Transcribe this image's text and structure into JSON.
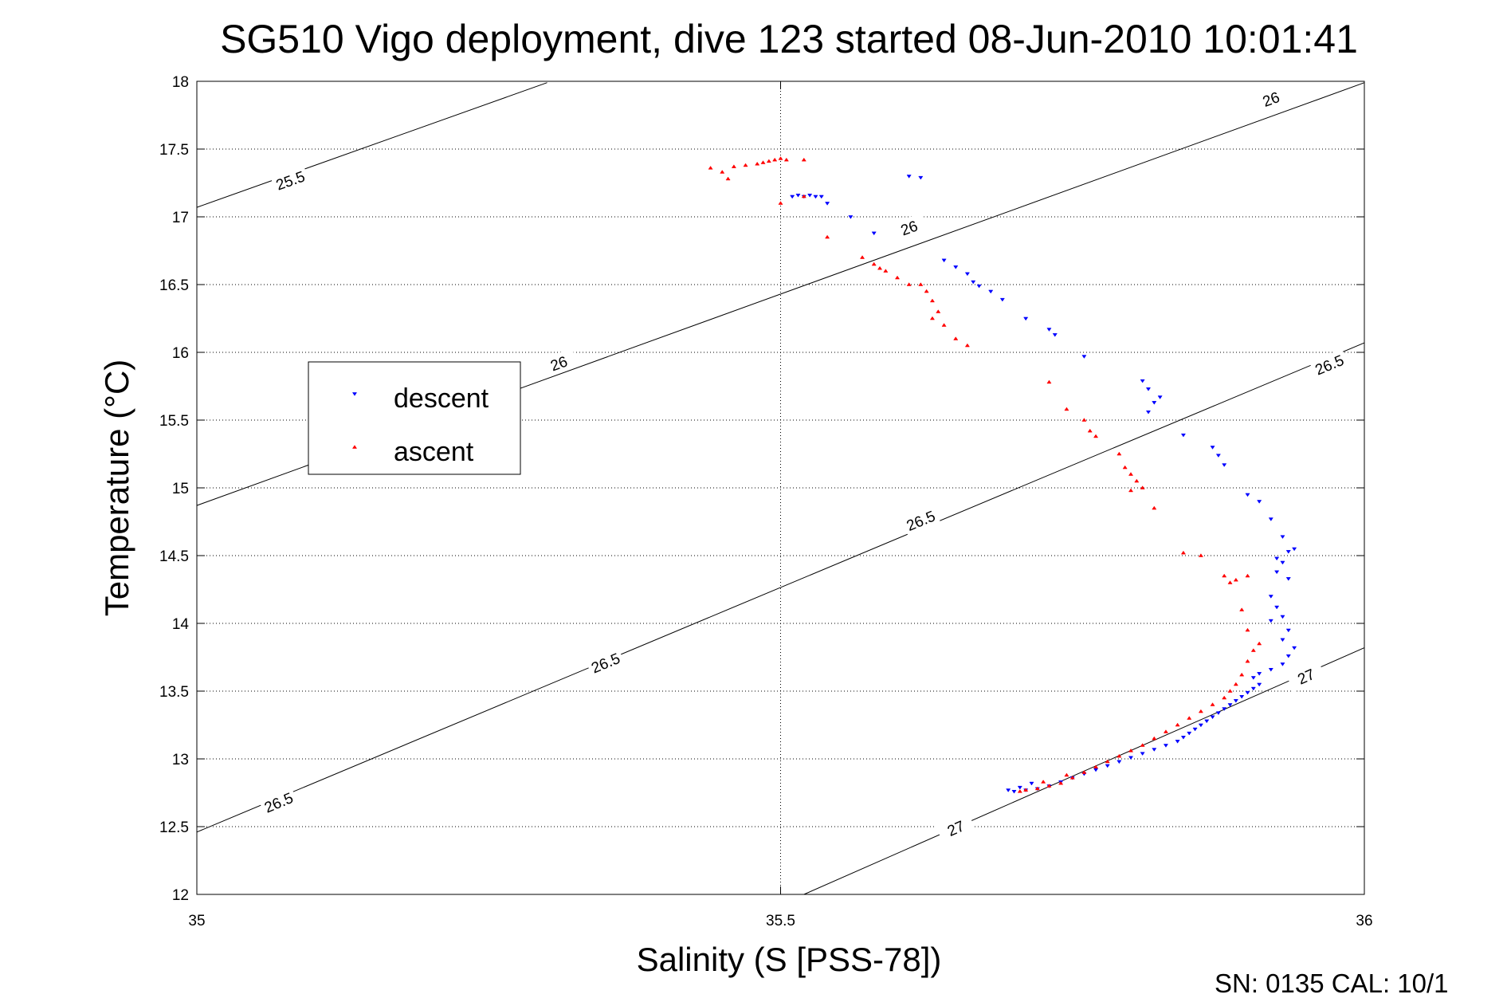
{
  "chart_data": {
    "type": "scatter",
    "title": "SG510 Vigo deployment, dive 123 started 08-Jun-2010 10:01:41",
    "xlabel": "Salinity (S [PSS-78])",
    "ylabel": "Temperature (°C)",
    "xlim": [
      35,
      36
    ],
    "ylim": [
      12,
      18
    ],
    "x_ticks": [
      "35",
      "35.5",
      "36"
    ],
    "y_ticks": [
      "12",
      "12.5",
      "13",
      "13.5",
      "14",
      "14.5",
      "15",
      "15.5",
      "16",
      "16.5",
      "17",
      "17.5",
      "18"
    ],
    "grid": true,
    "legend_position": "center-left",
    "footer": "SN: 0135  CAL: 10/1",
    "colors": {
      "descent": "#0000ff",
      "ascent": "#ff0000",
      "contour": "#000000"
    },
    "density_contours": [
      {
        "level": "25.5",
        "points": [
          [
            35.0,
            17.07
          ],
          [
            35.3,
            17.99
          ]
        ],
        "labels": [
          {
            "text": "25.5",
            "x": 35.08,
            "y": 17.27
          }
        ]
      },
      {
        "level": "26",
        "points": [
          [
            35.0,
            14.87
          ],
          [
            36.0,
            17.99
          ]
        ],
        "labels": [
          {
            "text": "26",
            "x": 35.31,
            "y": 15.92
          },
          {
            "text": "26",
            "x": 35.61,
            "y": 16.92
          },
          {
            "text": "26",
            "x": 35.92,
            "y": 17.87
          }
        ]
      },
      {
        "level": "26.5",
        "points": [
          [
            35.0,
            12.46
          ],
          [
            36.0,
            16.07
          ]
        ],
        "labels": [
          {
            "text": "26.5",
            "x": 35.07,
            "y": 12.68
          },
          {
            "text": "26.5",
            "x": 35.35,
            "y": 13.71
          },
          {
            "text": "26.5",
            "x": 35.62,
            "y": 14.76
          },
          {
            "text": "26.5",
            "x": 35.97,
            "y": 15.91
          }
        ]
      },
      {
        "level": "27",
        "points": [
          [
            35.52,
            12.0
          ],
          [
            36.0,
            13.82
          ]
        ],
        "labels": [
          {
            "text": "27",
            "x": 35.65,
            "y": 12.49
          },
          {
            "text": "27",
            "x": 35.95,
            "y": 13.61
          }
        ]
      }
    ],
    "series": [
      {
        "name": "descent",
        "marker": "triangle-down",
        "points": [
          [
            35.51,
            17.15
          ],
          [
            35.515,
            17.16
          ],
          [
            35.52,
            17.15
          ],
          [
            35.525,
            17.16
          ],
          [
            35.53,
            17.15
          ],
          [
            35.535,
            17.15
          ],
          [
            35.54,
            17.1
          ],
          [
            35.56,
            17.0
          ],
          [
            35.58,
            16.88
          ],
          [
            35.61,
            17.3
          ],
          [
            35.62,
            17.29
          ],
          [
            35.64,
            16.68
          ],
          [
            35.65,
            16.63
          ],
          [
            35.66,
            16.58
          ],
          [
            35.665,
            16.52
          ],
          [
            35.67,
            16.49
          ],
          [
            35.68,
            16.45
          ],
          [
            35.69,
            16.39
          ],
          [
            35.71,
            16.25
          ],
          [
            35.73,
            16.17
          ],
          [
            35.735,
            16.13
          ],
          [
            35.76,
            15.97
          ],
          [
            35.81,
            15.79
          ],
          [
            35.815,
            15.73
          ],
          [
            35.82,
            15.63
          ],
          [
            35.825,
            15.67
          ],
          [
            35.815,
            15.56
          ],
          [
            35.845,
            15.39
          ],
          [
            35.87,
            15.3
          ],
          [
            35.875,
            15.24
          ],
          [
            35.88,
            15.17
          ],
          [
            35.9,
            14.95
          ],
          [
            35.91,
            14.9
          ],
          [
            35.92,
            14.77
          ],
          [
            35.93,
            14.64
          ],
          [
            35.935,
            14.53
          ],
          [
            35.94,
            14.55
          ],
          [
            35.925,
            14.48
          ],
          [
            35.93,
            14.45
          ],
          [
            35.925,
            14.38
          ],
          [
            35.935,
            14.33
          ],
          [
            35.92,
            14.2
          ],
          [
            35.925,
            14.12
          ],
          [
            35.93,
            14.05
          ],
          [
            35.92,
            14.02
          ],
          [
            35.935,
            13.95
          ],
          [
            35.93,
            13.88
          ],
          [
            35.94,
            13.82
          ],
          [
            35.935,
            13.76
          ],
          [
            35.93,
            13.7
          ],
          [
            35.92,
            13.66
          ],
          [
            35.91,
            13.63
          ],
          [
            35.905,
            13.6
          ],
          [
            35.91,
            13.55
          ],
          [
            35.905,
            13.52
          ],
          [
            35.9,
            13.49
          ],
          [
            35.895,
            13.46
          ],
          [
            35.89,
            13.43
          ],
          [
            35.885,
            13.4
          ],
          [
            35.88,
            13.37
          ],
          [
            35.875,
            13.34
          ],
          [
            35.87,
            13.31
          ],
          [
            35.865,
            13.28
          ],
          [
            35.86,
            13.25
          ],
          [
            35.855,
            13.22
          ],
          [
            35.85,
            13.19
          ],
          [
            35.845,
            13.16
          ],
          [
            35.84,
            13.13
          ],
          [
            35.83,
            13.1
          ],
          [
            35.82,
            13.07
          ],
          [
            35.81,
            13.04
          ],
          [
            35.8,
            13.01
          ],
          [
            35.79,
            12.98
          ],
          [
            35.78,
            12.95
          ],
          [
            35.77,
            12.92
          ],
          [
            35.76,
            12.89
          ],
          [
            35.75,
            12.86
          ],
          [
            35.74,
            12.83
          ],
          [
            35.73,
            12.8
          ],
          [
            35.72,
            12.78
          ],
          [
            35.71,
            12.77
          ],
          [
            35.7,
            12.76
          ],
          [
            35.695,
            12.77
          ],
          [
            35.705,
            12.79
          ],
          [
            35.715,
            12.82
          ]
        ]
      },
      {
        "name": "ascent",
        "marker": "triangle-up",
        "points": [
          [
            35.44,
            17.36
          ],
          [
            35.45,
            17.33
          ],
          [
            35.455,
            17.28
          ],
          [
            35.46,
            17.37
          ],
          [
            35.47,
            17.38
          ],
          [
            35.48,
            17.39
          ],
          [
            35.485,
            17.4
          ],
          [
            35.49,
            17.41
          ],
          [
            35.495,
            17.42
          ],
          [
            35.5,
            17.43
          ],
          [
            35.505,
            17.42
          ],
          [
            35.52,
            17.42
          ],
          [
            35.5,
            17.1
          ],
          [
            35.52,
            17.15
          ],
          [
            35.54,
            16.85
          ],
          [
            35.57,
            16.7
          ],
          [
            35.58,
            16.65
          ],
          [
            35.585,
            16.62
          ],
          [
            35.59,
            16.6
          ],
          [
            35.6,
            16.55
          ],
          [
            35.61,
            16.5
          ],
          [
            35.62,
            16.5
          ],
          [
            35.625,
            16.45
          ],
          [
            35.63,
            16.38
          ],
          [
            35.635,
            16.3
          ],
          [
            35.63,
            16.25
          ],
          [
            35.64,
            16.2
          ],
          [
            35.65,
            16.1
          ],
          [
            35.66,
            16.05
          ],
          [
            35.73,
            15.78
          ],
          [
            35.745,
            15.58
          ],
          [
            35.76,
            15.5
          ],
          [
            35.765,
            15.42
          ],
          [
            35.77,
            15.38
          ],
          [
            35.79,
            15.25
          ],
          [
            35.795,
            15.15
          ],
          [
            35.8,
            15.1
          ],
          [
            35.805,
            15.05
          ],
          [
            35.81,
            15.0
          ],
          [
            35.8,
            14.98
          ],
          [
            35.82,
            14.85
          ],
          [
            35.845,
            14.52
          ],
          [
            35.86,
            14.5
          ],
          [
            35.88,
            14.35
          ],
          [
            35.885,
            14.3
          ],
          [
            35.89,
            14.32
          ],
          [
            35.9,
            14.35
          ],
          [
            35.895,
            14.1
          ],
          [
            35.9,
            13.95
          ],
          [
            35.91,
            13.85
          ],
          [
            35.905,
            13.8
          ],
          [
            35.9,
            13.72
          ],
          [
            35.895,
            13.62
          ],
          [
            35.89,
            13.55
          ],
          [
            35.885,
            13.5
          ],
          [
            35.88,
            13.45
          ],
          [
            35.87,
            13.4
          ],
          [
            35.86,
            13.35
          ],
          [
            35.85,
            13.3
          ],
          [
            35.84,
            13.25
          ],
          [
            35.83,
            13.2
          ],
          [
            35.82,
            13.15
          ],
          [
            35.81,
            13.1
          ],
          [
            35.8,
            13.06
          ],
          [
            35.79,
            13.02
          ],
          [
            35.78,
            12.98
          ],
          [
            35.77,
            12.94
          ],
          [
            35.76,
            12.9
          ],
          [
            35.75,
            12.86
          ],
          [
            35.74,
            12.82
          ],
          [
            35.73,
            12.8
          ],
          [
            35.72,
            12.78
          ],
          [
            35.71,
            12.77
          ],
          [
            35.705,
            12.76
          ],
          [
            35.725,
            12.83
          ],
          [
            35.745,
            12.88
          ]
        ]
      }
    ]
  }
}
